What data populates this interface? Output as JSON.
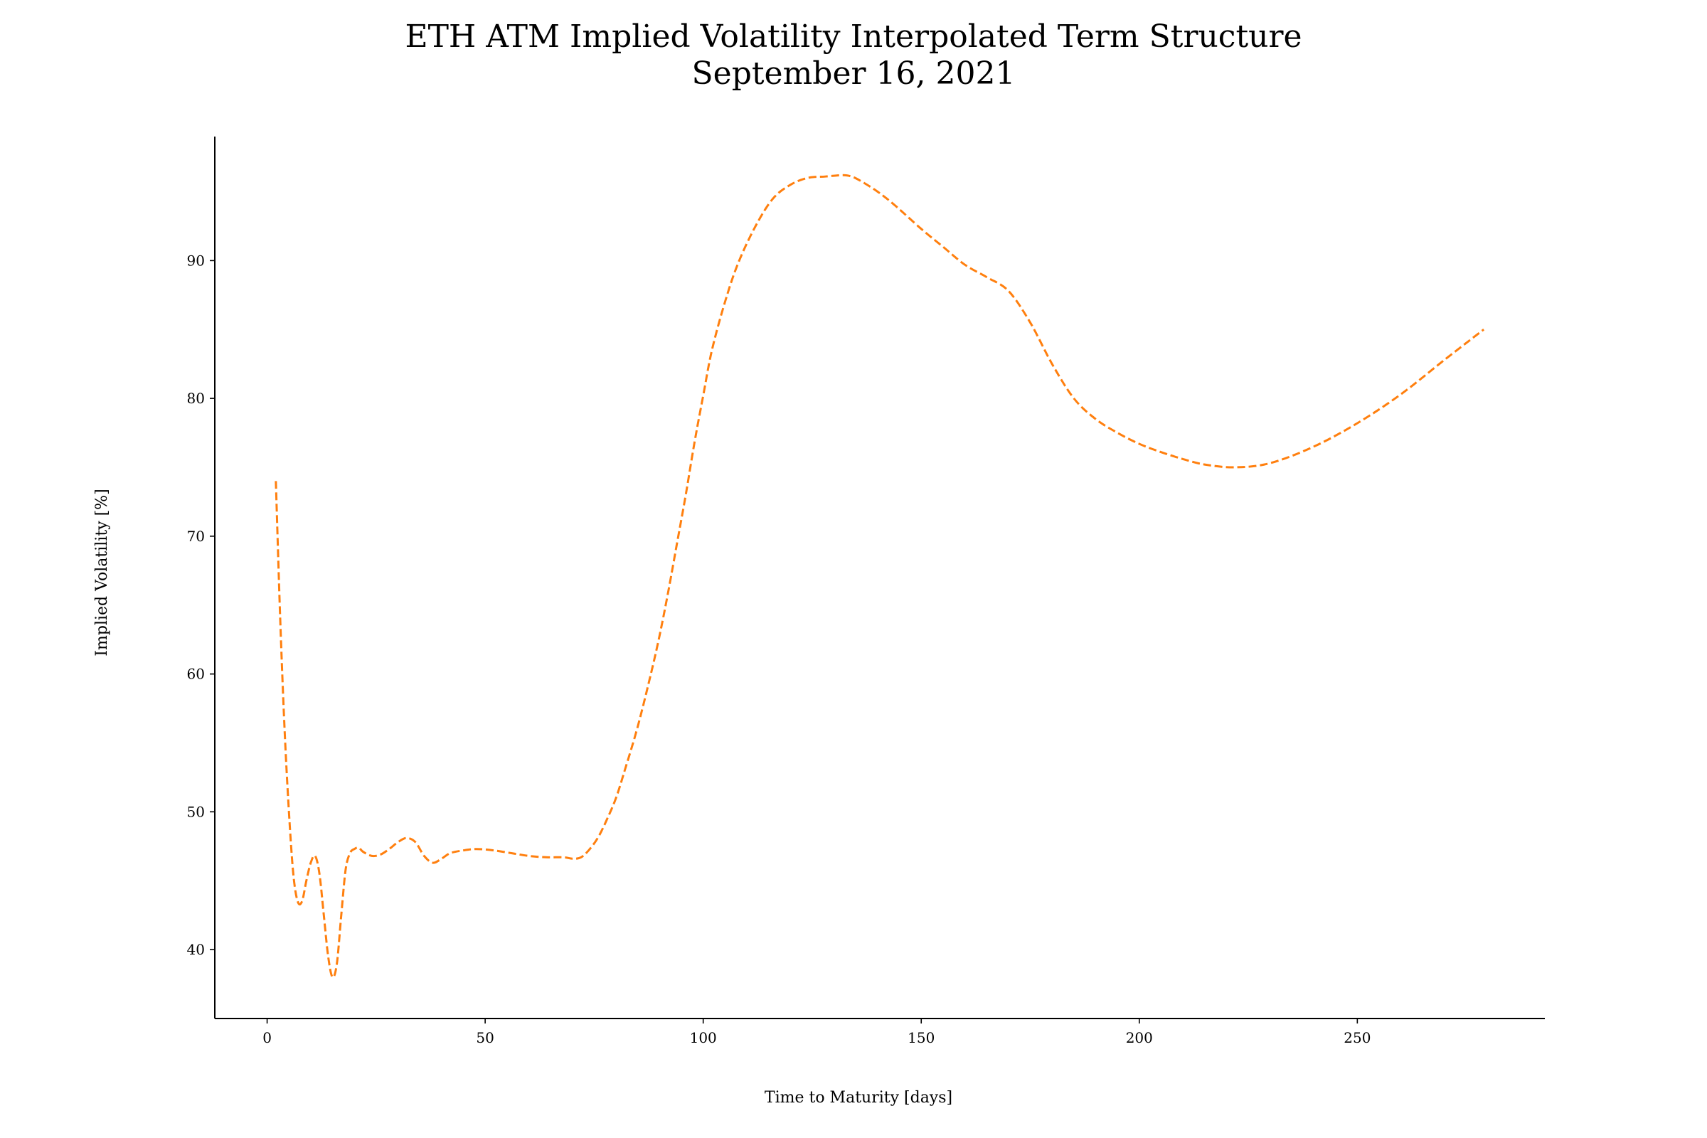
{
  "chart_data": {
    "type": "line",
    "title": "ETH ATM Implied Volatility Interpolated Term Structure",
    "subtitle": "September 16, 2021",
    "xlabel": "Time to Maturity [days]",
    "ylabel": "Implied Volatility [%]",
    "xlim": [
      -12,
      293
    ],
    "ylim": [
      35,
      99
    ],
    "xticks": [
      0,
      50,
      100,
      150,
      200,
      250
    ],
    "yticks": [
      40,
      50,
      60,
      70,
      80,
      90
    ],
    "grid": false,
    "legend": "none",
    "series": [
      {
        "color": "#ff7f0e",
        "line_style": "dashed",
        "x": [
          2,
          3,
          4,
          5,
          6,
          7,
          8,
          9,
          10,
          11,
          12,
          13,
          14,
          15,
          16,
          17,
          18,
          19,
          20,
          21,
          22,
          24,
          26,
          28,
          30,
          32,
          34,
          36,
          38,
          40,
          42,
          45,
          48,
          52,
          56,
          60,
          64,
          68,
          70,
          72,
          74,
          76,
          78,
          80,
          82,
          85,
          88,
          90,
          92,
          94,
          96,
          98,
          100,
          102,
          105,
          108,
          112,
          116,
          120,
          124,
          128,
          132,
          134,
          136,
          140,
          144,
          150,
          155,
          160,
          165,
          170,
          175,
          180,
          185,
          190,
          195,
          200,
          205,
          210,
          215,
          222,
          230,
          240,
          250,
          260,
          270,
          279
        ],
        "y": [
          74,
          64,
          56,
          50,
          45.5,
          43.5,
          43.5,
          45,
          46.3,
          46.8,
          45.5,
          42.5,
          39.5,
          38,
          39,
          42.5,
          45.8,
          47,
          47.3,
          47.4,
          47.1,
          46.8,
          46.9,
          47.3,
          47.8,
          48.1,
          47.8,
          46.8,
          46.3,
          46.6,
          47,
          47.2,
          47.3,
          47.2,
          47,
          46.8,
          46.7,
          46.7,
          46.6,
          46.7,
          47.3,
          48.2,
          49.5,
          51,
          53,
          56.2,
          60,
          62.8,
          66,
          69.5,
          73,
          76.8,
          80.2,
          83.5,
          87,
          89.8,
          92.5,
          94.5,
          95.5,
          96,
          96.1,
          96.2,
          96.1,
          95.8,
          95,
          94,
          92.3,
          91,
          89.7,
          88.8,
          87.8,
          85.5,
          82.5,
          80,
          78.5,
          77.5,
          76.7,
          76.1,
          75.6,
          75.2,
          75,
          75.3,
          76.5,
          78.2,
          80.3,
          82.8,
          85
        ]
      }
    ]
  }
}
